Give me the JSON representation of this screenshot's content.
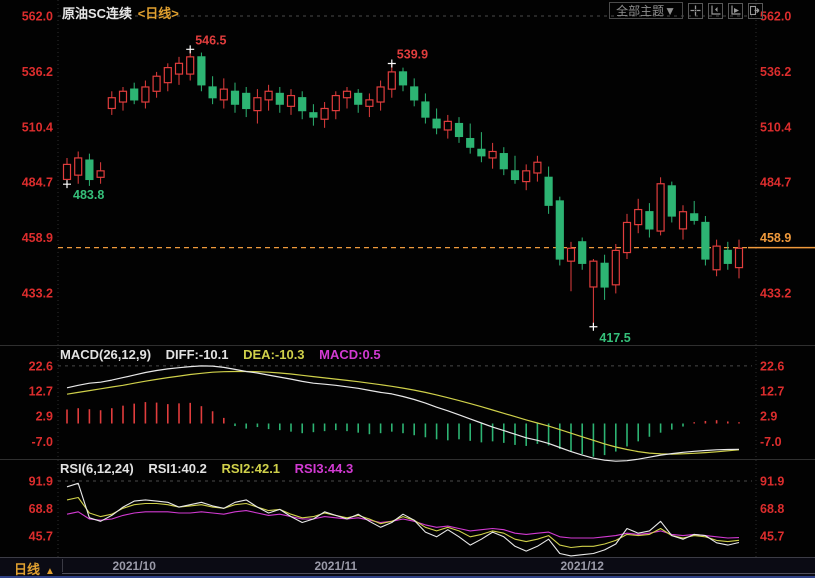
{
  "header": {
    "title": "原油SC连续",
    "period_tag": "<日线>"
  },
  "toolbar": {
    "theme_button_label": "全部主题▼",
    "icon_names": [
      "crosshair-icon",
      "y-axis-scale-icon",
      "x-axis-scale-icon",
      "shift-right-icon"
    ]
  },
  "colors": {
    "up": "#e13d3d",
    "down": "#2db473",
    "axis_text": "#dc2d2d",
    "highlight": "#f09a3c",
    "diff_line": "#e8e8e8",
    "dea_line": "#cfd04a",
    "magenta_line": "#d23ad2",
    "grid_dash": "#4a4a4a",
    "low_label": "#35c07a",
    "bg": "#020202"
  },
  "bottom_bar": {
    "period_label": "日线",
    "arrow_glyph": "▲",
    "date_labels": [
      {
        "index": 6,
        "text": "2021/10"
      },
      {
        "index": 24,
        "text": "2021/11"
      },
      {
        "index": 46,
        "text": "2021/12"
      }
    ]
  },
  "chart_data": [
    {
      "type": "candlestick",
      "title": "原油SC连续 日线",
      "y_ticks": [
        562.0,
        536.2,
        510.4,
        484.7,
        458.9,
        433.2
      ],
      "top_dashed_level": 562.0,
      "price_line": {
        "price": 454.3,
        "highlighted_axis_label": "458.9"
      },
      "annotations": [
        {
          "index": 0,
          "price": 483.8,
          "text": "483.8",
          "kind": "low"
        },
        {
          "index": 11,
          "price": 546.5,
          "text": "546.5",
          "kind": "high"
        },
        {
          "index": 29,
          "price": 539.9,
          "text": "539.9",
          "kind": "high"
        },
        {
          "index": 47,
          "price": 417.5,
          "text": "417.5",
          "kind": "low"
        }
      ],
      "candles_ohlc": [
        [
          486,
          496,
          483.8,
          493
        ],
        [
          488,
          499,
          484,
          496
        ],
        [
          495,
          498,
          483,
          486
        ],
        [
          487,
          494,
          484,
          490
        ],
        [
          519,
          527,
          516,
          524
        ],
        [
          522,
          529,
          518,
          527
        ],
        [
          528,
          531,
          521,
          523
        ],
        [
          522,
          532,
          519,
          529
        ],
        [
          527,
          536,
          524,
          534
        ],
        [
          531,
          540,
          527,
          538
        ],
        [
          535,
          543,
          530,
          540
        ],
        [
          535,
          546.5,
          532,
          543
        ],
        [
          543,
          545,
          527,
          530
        ],
        [
          529,
          534,
          521,
          524
        ],
        [
          523,
          533,
          519,
          528
        ],
        [
          527,
          531,
          517,
          521
        ],
        [
          526,
          529,
          515,
          519
        ],
        [
          518,
          528,
          512,
          524
        ],
        [
          523,
          530,
          518,
          527
        ],
        [
          526,
          529,
          517,
          521
        ],
        [
          520,
          528,
          516,
          525
        ],
        [
          524,
          527,
          514,
          518
        ],
        [
          517,
          521,
          511,
          515
        ],
        [
          514,
          522,
          510,
          519
        ],
        [
          518,
          527,
          514,
          525
        ],
        [
          524,
          529,
          519,
          527
        ],
        [
          526,
          528,
          517,
          521
        ],
        [
          520,
          526,
          515,
          523
        ],
        [
          522,
          532,
          518,
          529
        ],
        [
          528,
          539.9,
          524,
          536
        ],
        [
          536,
          538,
          527,
          530
        ],
        [
          529,
          533,
          520,
          523
        ],
        [
          522,
          526,
          512,
          515
        ],
        [
          514,
          519,
          507,
          510
        ],
        [
          509,
          516,
          505,
          513
        ],
        [
          512,
          515,
          503,
          506
        ],
        [
          505,
          512,
          498,
          501
        ],
        [
          500,
          508,
          494,
          497
        ],
        [
          496,
          503,
          491,
          499
        ],
        [
          498,
          501,
          488,
          491
        ],
        [
          490,
          497,
          484,
          486
        ],
        [
          485,
          493,
          481,
          490
        ],
        [
          489,
          497,
          485,
          494
        ],
        [
          487,
          492,
          470,
          474
        ],
        [
          476,
          478,
          446,
          449
        ],
        [
          448,
          457,
          434,
          454
        ],
        [
          457,
          459,
          444,
          447
        ],
        [
          436,
          449,
          417.5,
          448
        ],
        [
          447,
          451,
          430,
          436
        ],
        [
          437,
          456,
          433,
          453
        ],
        [
          452,
          470,
          449,
          466
        ],
        [
          465,
          477,
          461,
          472
        ],
        [
          471,
          475,
          459,
          463
        ],
        [
          462,
          487,
          460,
          484
        ],
        [
          483,
          485,
          466,
          469
        ],
        [
          463,
          474,
          458,
          471
        ],
        [
          470,
          476,
          465,
          467
        ],
        [
          466,
          469,
          446,
          449
        ],
        [
          444,
          458,
          441,
          455
        ],
        [
          453,
          457,
          444,
          447
        ],
        [
          445,
          458,
          440,
          454
        ]
      ]
    },
    {
      "type": "macd",
      "params": "MACD(26,12,9)",
      "diff_label": "DIFF:-10.1",
      "dea_label": "DEA:-10.3",
      "macd_label": "MACD:0.5",
      "y_ticks": [
        22.6,
        12.7,
        2.9,
        -7.0
      ],
      "top_dashed_level": 22.6,
      "diff": [
        14.0,
        15.0,
        15.8,
        16.2,
        17.0,
        18.0,
        19.0,
        20.0,
        20.8,
        21.4,
        21.9,
        22.3,
        22.6,
        22.5,
        22.0,
        21.2,
        20.4,
        19.8,
        19.0,
        18.2,
        17.4,
        16.5,
        15.8,
        15.4,
        15.0,
        14.4,
        13.8,
        13.0,
        12.2,
        11.6,
        10.6,
        9.4,
        8.0,
        6.4,
        5.0,
        3.4,
        1.8,
        0.2,
        -1.4,
        -2.8,
        -4.2,
        -5.6,
        -6.6,
        -7.8,
        -9.4,
        -11.0,
        -12.4,
        -13.6,
        -14.4,
        -14.8,
        -14.6,
        -14.0,
        -13.2,
        -12.4,
        -11.8,
        -11.3,
        -10.9,
        -10.6,
        -10.3,
        -10.2,
        -10.1
      ],
      "dea": [
        11.5,
        12.2,
        12.9,
        13.6,
        14.3,
        15.0,
        15.8,
        16.6,
        17.3,
        18.0,
        18.6,
        19.2,
        19.7,
        20.1,
        20.3,
        20.4,
        20.4,
        20.3,
        20.1,
        19.8,
        19.4,
        18.9,
        18.4,
        17.9,
        17.4,
        16.9,
        16.4,
        15.8,
        15.2,
        14.6,
        13.9,
        13.1,
        12.2,
        11.2,
        10.1,
        9.0,
        7.8,
        6.6,
        5.3,
        4.0,
        2.7,
        1.4,
        0.2,
        -1.0,
        -2.4,
        -3.8,
        -5.2,
        -6.6,
        -8.0,
        -9.2,
        -10.2,
        -11.0,
        -11.6,
        -11.9,
        -12.0,
        -11.9,
        -11.7,
        -11.4,
        -11.1,
        -10.7,
        -10.3
      ],
      "hist": [
        5.5,
        6.0,
        5.6,
        5.2,
        6.0,
        7.0,
        7.8,
        8.4,
        8.2,
        7.6,
        7.9,
        8.1,
        6.8,
        4.8,
        2.2,
        -1.0,
        -2.0,
        -1.4,
        -2.2,
        -2.6,
        -3.2,
        -3.8,
        -3.4,
        -3.0,
        -2.6,
        -3.0,
        -3.6,
        -4.2,
        -3.8,
        -3.2,
        -3.8,
        -4.6,
        -5.4,
        -6.2,
        -6.6,
        -6.2,
        -6.8,
        -7.4,
        -7.0,
        -7.6,
        -8.4,
        -8.8,
        -8.0,
        -8.6,
        -10.0,
        -11.0,
        -12.0,
        -13.0,
        -12.4,
        -11.0,
        -9.0,
        -7.0,
        -5.2,
        -3.6,
        -2.4,
        -1.2,
        0.5,
        1.0,
        1.3,
        0.8,
        0.5
      ]
    },
    {
      "type": "rsi",
      "params": "RSI(6,12,24)",
      "rsi1_label": "RSI1:40.2",
      "rsi2_label": "RSI2:42.1",
      "rsi3_label": "RSI3:44.3",
      "y_ticks": [
        91.9,
        68.8,
        45.7
      ],
      "top_dashed_level": 91.9,
      "rsi1": [
        87,
        90,
        61,
        58,
        63,
        70,
        75,
        76,
        75,
        74,
        70,
        72,
        74,
        71,
        69,
        74,
        76,
        70,
        65,
        68,
        62,
        57,
        60,
        66,
        63,
        60,
        64,
        58,
        53,
        57,
        64,
        59,
        49,
        45,
        51,
        45,
        38,
        43,
        49,
        45,
        37,
        33,
        37,
        43,
        31,
        29,
        30,
        31,
        34,
        39,
        52,
        48,
        50,
        58,
        46,
        43,
        47,
        46,
        40,
        38,
        40.2
      ],
      "rsi2": [
        76,
        78,
        65,
        62,
        64,
        69,
        72,
        73,
        73,
        72,
        70,
        71,
        72,
        70,
        69,
        72,
        73,
        70,
        67,
        68,
        64,
        61,
        62,
        65,
        63,
        61,
        63,
        60,
        56,
        58,
        62,
        59,
        53,
        50,
        53,
        50,
        45,
        47,
        50,
        48,
        43,
        41,
        43,
        46,
        38,
        36,
        37,
        37,
        39,
        42,
        47,
        46,
        47,
        52,
        46,
        44,
        46,
        45,
        42,
        41,
        42.1
      ],
      "rsi3": [
        64,
        66,
        60,
        59,
        60,
        63,
        65,
        66,
        66,
        66,
        65,
        65,
        66,
        65,
        64,
        66,
        67,
        65,
        63,
        64,
        62,
        60,
        60,
        62,
        61,
        60,
        61,
        59,
        57,
        58,
        60,
        58,
        55,
        53,
        54,
        52,
        50,
        51,
        52,
        51,
        48,
        47,
        48,
        49,
        45,
        44,
        44,
        44,
        45,
        46,
        48,
        47,
        48,
        50,
        47,
        46,
        47,
        46,
        45,
        44,
        44.3
      ]
    }
  ]
}
